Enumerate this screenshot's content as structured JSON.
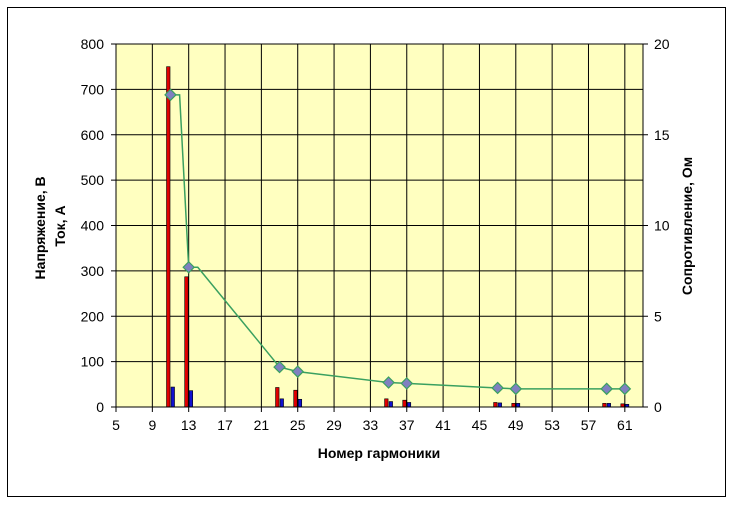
{
  "chart_data": {
    "type": "bar",
    "xlabel": "Номер гармоники",
    "ylabel_lines": [
      "Напряжение, В",
      "Ток, А"
    ],
    "y2label": "Сопротивление, Ом",
    "x_ticks": [
      "5",
      "9",
      "13",
      "17",
      "21",
      "25",
      "29",
      "33",
      "37",
      "41",
      "45",
      "49",
      "53",
      "57",
      "61"
    ],
    "xlim": [
      5,
      63
    ],
    "ylim": [
      0,
      800
    ],
    "y_ticks": [
      "0",
      "100",
      "200",
      "300",
      "400",
      "500",
      "600",
      "700",
      "800"
    ],
    "y2lim": [
      0,
      20
    ],
    "y2_ticks": [
      "0",
      "5",
      "10",
      "15",
      "20"
    ],
    "grid": true,
    "plot_background": "#ffffc0",
    "colors": {
      "voltage": "#e00000",
      "current": "#1010d0",
      "resistance": "#3aa060",
      "marker": "#8080c0"
    },
    "series": [
      {
        "type": "bar",
        "color": "#e00000",
        "points": [
          {
            "x": 11,
            "y": 750
          },
          {
            "x": 13,
            "y": 287
          },
          {
            "x": 23,
            "y": 43
          },
          {
            "x": 25,
            "y": 37
          },
          {
            "x": 35,
            "y": 18
          },
          {
            "x": 37,
            "y": 15
          },
          {
            "x": 47,
            "y": 10
          },
          {
            "x": 49,
            "y": 8
          },
          {
            "x": 59,
            "y": 8
          },
          {
            "x": 61,
            "y": 7
          }
        ]
      },
      {
        "type": "bar",
        "color": "#1010d0",
        "points": [
          {
            "x": 11,
            "y": 44
          },
          {
            "x": 13,
            "y": 36
          },
          {
            "x": 23,
            "y": 18
          },
          {
            "x": 25,
            "y": 17
          },
          {
            "x": 35,
            "y": 12
          },
          {
            "x": 37,
            "y": 10
          },
          {
            "x": 47,
            "y": 9
          },
          {
            "x": 49,
            "y": 8
          },
          {
            "x": 59,
            "y": 8
          },
          {
            "x": 61,
            "y": 6
          }
        ]
      },
      {
        "type": "line",
        "axis": "y2",
        "color": "#3aa060",
        "points": [
          {
            "x": 11,
            "y": 17.2
          },
          {
            "x": 12,
            "y": 17.2
          },
          {
            "x": 13,
            "y": 7.7
          },
          {
            "x": 14,
            "y": 7.7
          },
          {
            "x": 23,
            "y": 2.2
          },
          {
            "x": 25,
            "y": 1.95
          },
          {
            "x": 35,
            "y": 1.35
          },
          {
            "x": 37,
            "y": 1.3
          },
          {
            "x": 47,
            "y": 1.05
          },
          {
            "x": 49,
            "y": 1.0
          },
          {
            "x": 59,
            "y": 1.0
          },
          {
            "x": 61,
            "y": 1.0
          }
        ]
      }
    ],
    "marker_x": [
      11,
      13,
      23,
      25,
      35,
      37,
      47,
      49,
      59,
      61
    ]
  }
}
